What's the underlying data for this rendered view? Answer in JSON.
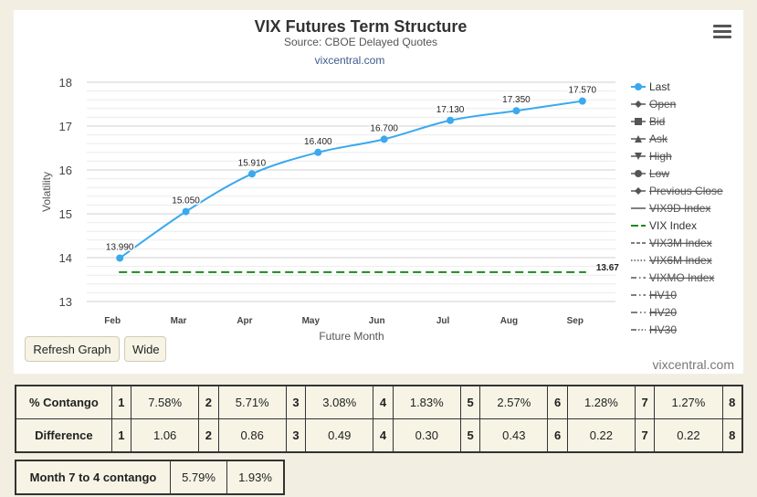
{
  "chart_data": {
    "type": "line",
    "title": "VIX Futures Term Structure",
    "subtitle": "Source: CBOE Delayed Quotes",
    "link": "vixcentral.com",
    "xlabel": "Future Month",
    "ylabel": "Volatility",
    "categories": [
      "Feb",
      "Mar",
      "Apr",
      "May",
      "Jun",
      "Jul",
      "Aug",
      "Sep"
    ],
    "ylim": [
      13,
      18
    ],
    "yticks": [
      13,
      14,
      15,
      16,
      17,
      18
    ],
    "grid": true,
    "legend_position": "right",
    "series": [
      {
        "name": "Last",
        "values": [
          13.99,
          15.05,
          15.91,
          16.4,
          16.7,
          17.13,
          17.35,
          17.57
        ],
        "labels": [
          "13.990",
          "15.050",
          "15.910",
          "16.400",
          "16.700",
          "17.130",
          "17.350",
          "17.570"
        ],
        "color": "#3aa9ee"
      },
      {
        "name": "VIX Index",
        "values": [
          13.67,
          13.67,
          13.67,
          13.67,
          13.67,
          13.67,
          13.67,
          13.67
        ],
        "end_label": "13.67",
        "color": "#1a8a1a",
        "dash": "long-dash"
      }
    ],
    "legend": [
      {
        "name": "Last",
        "active": true,
        "marker": "circle",
        "line": "solid",
        "color": "#3aa9ee"
      },
      {
        "name": "Open",
        "active": false,
        "marker": "diamond",
        "line": "solid"
      },
      {
        "name": "Bid",
        "active": false,
        "marker": "square",
        "line": "solid"
      },
      {
        "name": "Ask",
        "active": false,
        "marker": "triangle",
        "line": "solid"
      },
      {
        "name": "High",
        "active": false,
        "marker": "triangle-down",
        "line": "solid"
      },
      {
        "name": "Low",
        "active": false,
        "marker": "circle",
        "line": "solid"
      },
      {
        "name": "Previous Close",
        "active": false,
        "marker": "diamond",
        "line": "solid"
      },
      {
        "name": "VIX9D Index",
        "active": false,
        "marker": "none",
        "line": "solid"
      },
      {
        "name": "VIX Index",
        "active": true,
        "marker": "none",
        "line": "long-dash",
        "color": "#1a8a1a"
      },
      {
        "name": "VIX3M Index",
        "active": false,
        "marker": "none",
        "line": "short-dash"
      },
      {
        "name": "VIX6M Index",
        "active": false,
        "marker": "none",
        "line": "dotted"
      },
      {
        "name": "VIXMO Index",
        "active": false,
        "marker": "none",
        "line": "dash-dot"
      },
      {
        "name": "HV10",
        "active": false,
        "marker": "none",
        "line": "dash-dot"
      },
      {
        "name": "HV20",
        "active": false,
        "marker": "none",
        "line": "long-dash-dot"
      },
      {
        "name": "HV30",
        "active": false,
        "marker": "none",
        "line": "long-dash-dot-dot"
      }
    ]
  },
  "buttons": {
    "refresh": "Refresh Graph",
    "wide": "Wide"
  },
  "credit": "vixcentral.com",
  "contango": {
    "row1_label": "% Contango",
    "row1": [
      {
        "n": "1",
        "v": "7.58%"
      },
      {
        "n": "2",
        "v": "5.71%"
      },
      {
        "n": "3",
        "v": "3.08%"
      },
      {
        "n": "4",
        "v": "1.83%"
      },
      {
        "n": "5",
        "v": "2.57%"
      },
      {
        "n": "6",
        "v": "1.28%"
      },
      {
        "n": "7",
        "v": "1.27%"
      },
      {
        "n": "8",
        "v": ""
      }
    ],
    "row2_label": "Difference",
    "row2": [
      {
        "n": "1",
        "v": "1.06"
      },
      {
        "n": "2",
        "v": "0.86"
      },
      {
        "n": "3",
        "v": "0.49"
      },
      {
        "n": "4",
        "v": "0.30"
      },
      {
        "n": "5",
        "v": "0.43"
      },
      {
        "n": "6",
        "v": "0.22"
      },
      {
        "n": "7",
        "v": "0.22"
      },
      {
        "n": "8",
        "v": ""
      }
    ]
  },
  "month74": {
    "label": "Month 7 to 4 contango",
    "v1": "5.79%",
    "v2": "1.93%"
  }
}
